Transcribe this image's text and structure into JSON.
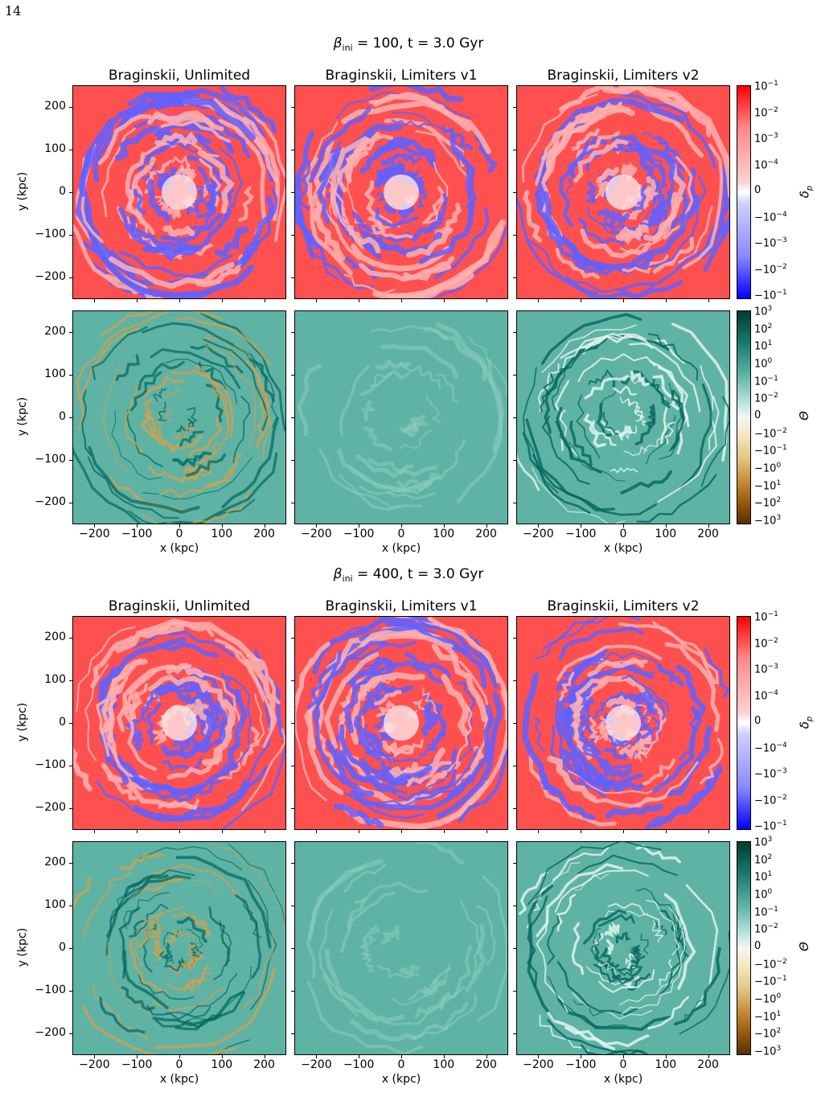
{
  "page": {
    "number": "14"
  },
  "figure1": {
    "title_prefix": "β",
    "title_sub": "ini",
    "title_rest": " = 100, t = 3.0 Gyr"
  },
  "figure2": {
    "title_prefix": "β",
    "title_sub": "ini",
    "title_rest": " = 400, t = 3.0 Gyr"
  },
  "columns": [
    "Braginskii, Unlimited",
    "Braginskii, Limiters v1",
    "Braginskii, Limiters v2"
  ],
  "axes": {
    "ylabel": "y (kpc)",
    "xlabel": "x (kpc)",
    "yticks": [
      "200",
      "100",
      "0",
      "−100",
      "−200"
    ],
    "xticks": [
      "−200",
      "−100",
      "0",
      "100",
      "200"
    ]
  },
  "colorbars": {
    "dp_label": "δ",
    "dp_label_sub": "p",
    "dp_ticks": [
      "10",
      "10",
      "10",
      "10",
      "0",
      "−10",
      "−10",
      "−10",
      "−10"
    ],
    "dp_exps": [
      "−1",
      "−2",
      "−3",
      "−4",
      "",
      "−4",
      "−3",
      "−2",
      "−1"
    ],
    "th_label": "Θ",
    "th_ticks": [
      "10",
      "10",
      "10",
      "10",
      "10",
      "10",
      "0",
      "−10",
      "−10",
      "−10",
      "−10",
      "−10",
      "−10"
    ],
    "th_exps": [
      "3",
      "2",
      "1",
      "0",
      "−1",
      "−2",
      "",
      "−2",
      "−1",
      "0",
      "1",
      "2",
      "3"
    ]
  },
  "colors": {
    "dp_positive": "#ff5050",
    "dp_negative": "#6060ff",
    "theta_base": "#5fb3a5",
    "theta_dark": "#01665e",
    "theta_neg": "#d8a04a"
  }
}
